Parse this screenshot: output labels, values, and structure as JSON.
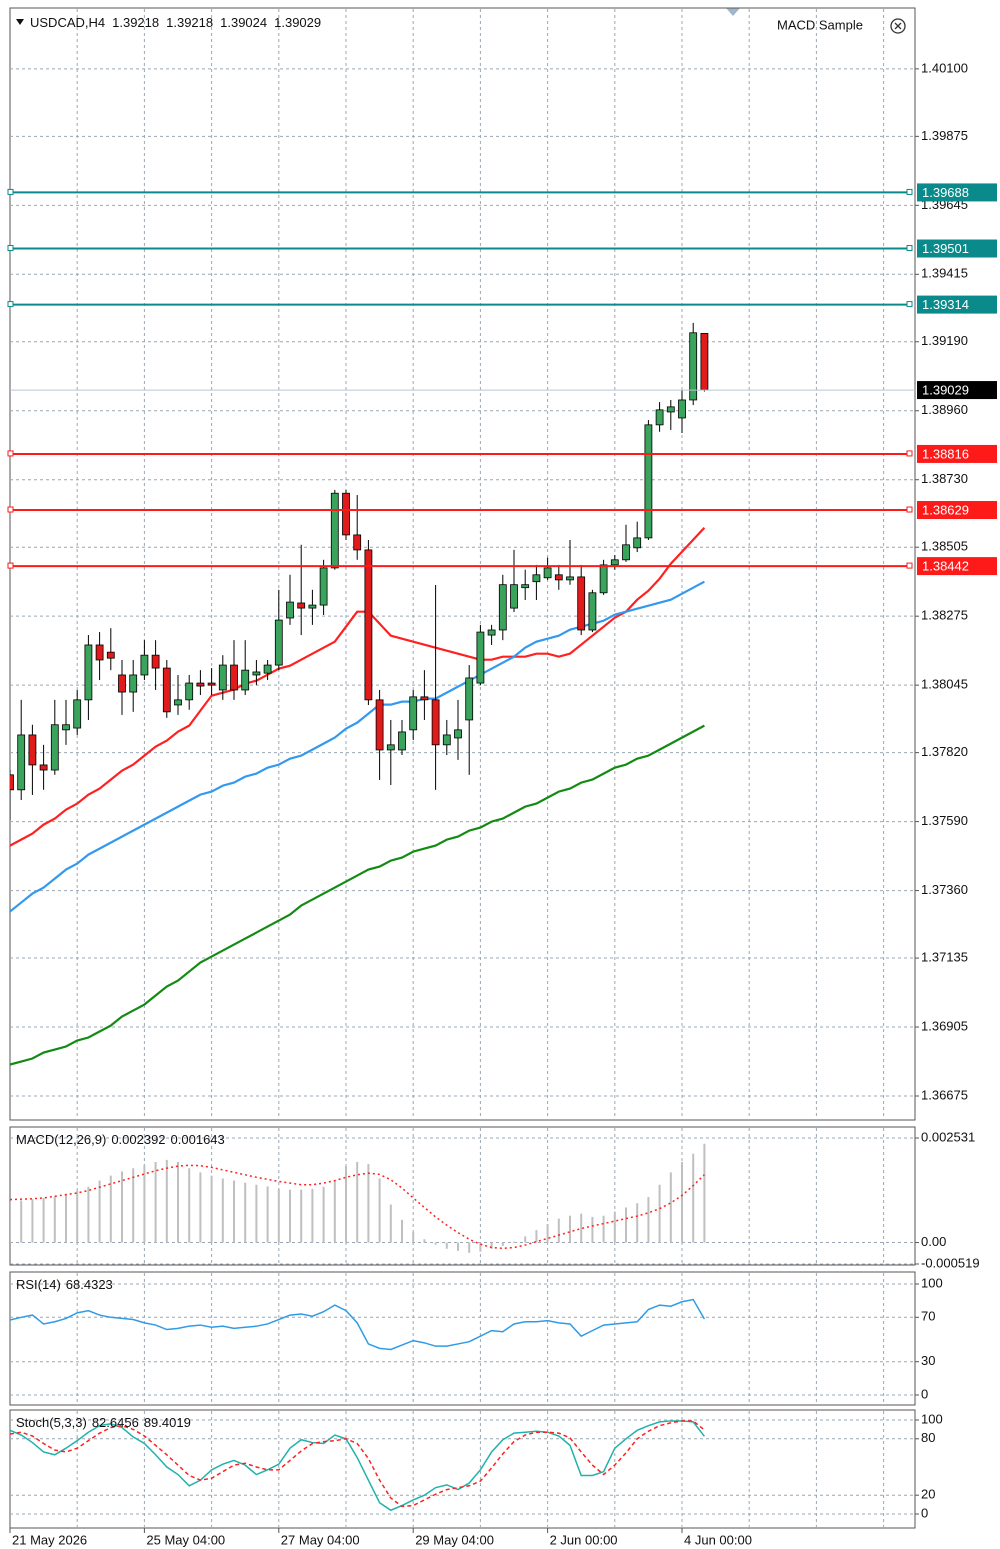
{
  "chart_data": [
    {
      "type": "candlestick",
      "symbol": "USDCAD,H4",
      "indicator": "MACD Sample",
      "categories": [
        "21 May 2026",
        null,
        null,
        null,
        null,
        null,
        null,
        null,
        null,
        null,
        null,
        null,
        "25 May 04:00",
        null,
        null,
        null,
        null,
        null,
        null,
        null,
        null,
        null,
        null,
        null,
        "27 May 04:00",
        null,
        null,
        null,
        null,
        null,
        null,
        null,
        null,
        null,
        null,
        null,
        "29 May 04:00",
        null,
        null,
        null,
        null,
        null,
        null,
        null,
        null,
        null,
        null,
        null,
        "2 Jun 00:00",
        null,
        null,
        null,
        null,
        null,
        null,
        null,
        null,
        null,
        null,
        null,
        "4 Jun 00:00",
        null,
        null
      ],
      "open": [
        1.37746,
        1.37696,
        1.37879,
        1.37779,
        1.37762,
        1.37896,
        1.37902,
        1.37996,
        1.38179,
        1.38155,
        1.38079,
        1.38022,
        1.38079,
        1.38145,
        1.38102,
        1.37979,
        1.37996,
        1.38052,
        1.38052,
        1.38029,
        1.38112,
        1.38029,
        1.38079,
        1.38085,
        1.38112,
        1.38269,
        1.38319,
        1.38302,
        1.38312,
        1.38436,
        1.38685,
        1.38546,
        1.38496,
        1.37996,
        1.37829,
        1.37829,
        1.37896,
        1.38006,
        1.37996,
        1.37846,
        1.37869,
        1.37929,
        1.38052,
        1.38212,
        1.38229,
        1.38302,
        1.3837,
        1.3839,
        1.38403,
        1.38413,
        1.38396,
        1.38406,
        1.38229,
        1.38353,
        1.38446,
        1.38463,
        1.38503,
        1.38536,
        1.38913,
        1.38956,
        1.38936,
        1.38996,
        1.39218
      ],
      "high": [
        1.37762,
        1.37996,
        1.37913,
        1.37846,
        1.37996,
        1.37996,
        1.38029,
        1.38212,
        1.38222,
        1.38235,
        1.38129,
        1.38129,
        1.38195,
        1.38195,
        1.38129,
        1.38079,
        1.38079,
        1.38095,
        1.38102,
        1.38145,
        1.38195,
        1.38195,
        1.38129,
        1.38129,
        1.38363,
        1.38413,
        1.38513,
        1.38363,
        1.38463,
        1.38696,
        1.38696,
        1.38679,
        1.38529,
        1.38029,
        1.37929,
        1.37929,
        1.38029,
        1.38095,
        1.38379,
        1.37929,
        1.37996,
        1.38112,
        1.38246,
        1.38246,
        1.38413,
        1.38496,
        1.3843,
        1.38446,
        1.3847,
        1.38446,
        1.38529,
        1.38446,
        1.38363,
        1.38463,
        1.38479,
        1.3858,
        1.3859,
        1.38929,
        1.38989,
        1.38996,
        1.39029,
        1.39253,
        1.39218
      ],
      "low": [
        1.37595,
        1.37662,
        1.37679,
        1.37696,
        1.37746,
        1.37846,
        1.37879,
        1.37929,
        1.38062,
        1.38095,
        1.37946,
        1.37956,
        1.38062,
        1.38029,
        1.37936,
        1.37946,
        1.37963,
        1.38012,
        1.38012,
        1.37996,
        1.37996,
        1.38012,
        1.38045,
        1.38062,
        1.38095,
        1.38246,
        1.38212,
        1.38246,
        1.38279,
        1.3843,
        1.38529,
        1.38463,
        1.37979,
        1.37729,
        1.37712,
        1.37812,
        1.37862,
        1.37929,
        1.37696,
        1.37812,
        1.37796,
        1.37746,
        1.38045,
        1.38179,
        1.38195,
        1.38289,
        1.38329,
        1.38329,
        1.38396,
        1.38363,
        1.3838,
        1.38212,
        1.38222,
        1.38346,
        1.3843,
        1.38456,
        1.38489,
        1.38529,
        1.3889,
        1.38896,
        1.38886,
        1.38979,
        1.39024
      ],
      "close": [
        1.37696,
        1.37879,
        1.37779,
        1.37762,
        1.37913,
        1.37913,
        1.37996,
        1.38179,
        1.38129,
        1.38135,
        1.38022,
        1.38079,
        1.38145,
        1.38102,
        1.37956,
        1.37996,
        1.38052,
        1.38042,
        1.38045,
        1.38112,
        1.38029,
        1.38095,
        1.38089,
        1.38112,
        1.38262,
        1.38322,
        1.38302,
        1.38312,
        1.38436,
        1.38685,
        1.38546,
        1.38496,
        1.37996,
        1.37829,
        1.37846,
        1.37889,
        1.38006,
        1.37996,
        1.37846,
        1.37879,
        1.37896,
        1.38069,
        1.38222,
        1.38229,
        1.3838,
        1.3838,
        1.3838,
        1.38413,
        1.38436,
        1.38396,
        1.38406,
        1.38229,
        1.38353,
        1.38446,
        1.38463,
        1.38513,
        1.38536,
        1.38913,
        1.38963,
        1.38973,
        1.38996,
        1.3922,
        1.39029
      ],
      "up_color": "#3aa35c",
      "down_color": "#e01b1b",
      "wick_color": "#000000",
      "overlays": [
        {
          "color": "#ff2020",
          "values": [
            1.3751,
            1.3753,
            1.3755,
            1.3758,
            1.376,
            1.3763,
            1.3765,
            1.3768,
            1.377,
            1.3773,
            1.3776,
            1.3778,
            1.3781,
            1.3784,
            1.3786,
            1.3789,
            1.3791,
            1.3796,
            1.3801,
            1.3802,
            1.3803,
            1.3805,
            1.3806,
            1.3808,
            1.381,
            1.3811,
            1.3813,
            1.3815,
            1.3817,
            1.3819,
            1.3824,
            1.3829,
            1.3829,
            1.3825,
            1.3821,
            1.382,
            1.3819,
            1.3818,
            1.3817,
            1.3816,
            1.3815,
            1.3814,
            1.3813,
            1.3813,
            1.3814,
            1.3814,
            1.3814,
            1.3815,
            1.3815,
            1.3814,
            1.3815,
            1.3818,
            1.3821,
            1.3824,
            1.3827,
            1.3829,
            1.3833,
            1.3836,
            1.384,
            1.3845,
            1.3849,
            1.3853,
            1.3857
          ]
        },
        {
          "color": "#3399ee",
          "values": [
            1.3729,
            1.3732,
            1.3735,
            1.3737,
            1.374,
            1.3743,
            1.3745,
            1.3748,
            1.375,
            1.3752,
            1.3754,
            1.3756,
            1.3758,
            1.376,
            1.3762,
            1.3764,
            1.3766,
            1.3768,
            1.3769,
            1.3771,
            1.3772,
            1.3774,
            1.3775,
            1.3777,
            1.3778,
            1.378,
            1.3781,
            1.3783,
            1.3785,
            1.3787,
            1.379,
            1.3792,
            1.3795,
            1.3798,
            1.3798,
            1.3799,
            1.3799,
            1.38,
            1.38,
            1.3802,
            1.3804,
            1.3806,
            1.3808,
            1.381,
            1.3812,
            1.3814,
            1.3817,
            1.3819,
            1.382,
            1.3821,
            1.3823,
            1.3824,
            1.3825,
            1.3826,
            1.3828,
            1.3829,
            1.383,
            1.3831,
            1.3832,
            1.3833,
            1.3835,
            1.3837,
            1.3839
          ]
        },
        {
          "color": "#138a13",
          "values": [
            1.3678,
            1.3679,
            1.368,
            1.3682,
            1.3683,
            1.3684,
            1.3686,
            1.3687,
            1.3689,
            1.3691,
            1.3694,
            1.3696,
            1.3698,
            1.3701,
            1.3704,
            1.3706,
            1.3709,
            1.3712,
            1.3714,
            1.3716,
            1.3718,
            1.372,
            1.3722,
            1.3724,
            1.3726,
            1.3728,
            1.3731,
            1.3733,
            1.3735,
            1.3737,
            1.3739,
            1.3741,
            1.3743,
            1.3744,
            1.3746,
            1.3747,
            1.3749,
            1.375,
            1.3751,
            1.3753,
            1.3754,
            1.3756,
            1.3757,
            1.3759,
            1.376,
            1.3762,
            1.3764,
            1.3765,
            1.3767,
            1.3769,
            1.377,
            1.3772,
            1.3773,
            1.3775,
            1.3777,
            1.3778,
            1.378,
            1.3781,
            1.3783,
            1.3785,
            1.3787,
            1.3789,
            1.3791
          ]
        }
      ],
      "levels": [
        {
          "value": 1.39688,
          "color": "#0a8a8a"
        },
        {
          "value": 1.39501,
          "color": "#0a8a8a"
        },
        {
          "value": 1.39314,
          "color": "#0a8a8a"
        },
        {
          "value": 1.38816,
          "color": "#ff1a1a"
        },
        {
          "value": 1.38629,
          "color": "#ff1a1a"
        },
        {
          "value": 1.38442,
          "color": "#ff1a1a"
        }
      ],
      "last_price": 1.39029,
      "ylim": [
        1.36595,
        1.40303
      ],
      "yticks": [
        {
          "value": 1.401,
          "label": "1.40100"
        },
        1.39875,
        1.39645,
        1.39415,
        {
          "value": 1.3919,
          "label": "1.39190"
        },
        {
          "value": 1.3896,
          "label": "1.38960"
        },
        {
          "value": 1.3873,
          "label": "1.38730"
        },
        1.38505,
        1.38275,
        1.38045,
        {
          "value": 1.3782,
          "label": "1.37820"
        },
        {
          "value": 1.3759,
          "label": "1.37590"
        },
        {
          "value": 1.3736,
          "label": "1.37360"
        },
        1.37135,
        1.36905,
        1.36675
      ],
      "grid": true
    },
    {
      "type": "macd",
      "title": "MACD(12,26,9)",
      "series": [
        {
          "color": "#bfbfbf",
          "style": "histogram",
          "values": [
            0.001,
            0.00102,
            0.00105,
            0.00108,
            0.00112,
            0.00118,
            0.00125,
            0.00135,
            0.0015,
            0.00162,
            0.00172,
            0.0018,
            0.00188,
            0.00195,
            0.002,
            0.00195,
            0.0018,
            0.0017,
            0.00162,
            0.00155,
            0.0015,
            0.00145,
            0.0014,
            0.00136,
            0.0013,
            0.00128,
            0.00128,
            0.0013,
            0.00135,
            0.0015,
            0.00185,
            0.00195,
            0.0019,
            0.00155,
            0.00092,
            0.00055,
            0.00025,
            8e-05,
            -5e-05,
            -0.00015,
            -0.0002,
            -0.00025,
            -0.00022,
            -0.00015,
            -8e-05,
            2e-05,
            0.00015,
            0.0003,
            0.00045,
            0.00058,
            0.00065,
            0.0007,
            0.00062,
            0.00065,
            0.00075,
            0.00085,
            0.00095,
            0.0011,
            0.0014,
            0.0017,
            0.00195,
            0.00215,
            0.002392
          ]
        },
        {
          "color": "#ff2020",
          "style": "dotted",
          "values": [
            0.00104,
            0.00105,
            0.00106,
            0.00108,
            0.00112,
            0.00116,
            0.0012,
            0.00126,
            0.00134,
            0.00142,
            0.0015,
            0.00158,
            0.00166,
            0.00174,
            0.0018,
            0.00185,
            0.00187,
            0.00186,
            0.00182,
            0.00176,
            0.0017,
            0.00164,
            0.00158,
            0.00153,
            0.00148,
            0.00144,
            0.0014,
            0.0014,
            0.00144,
            0.0015,
            0.00158,
            0.00164,
            0.00168,
            0.00165,
            0.00152,
            0.00132,
            0.00108,
            0.00085,
            0.00062,
            0.00042,
            0.00024,
            8e-05,
            -4e-05,
            -0.00012,
            -0.00014,
            -0.00012,
            -6e-05,
            2e-05,
            0.0001,
            0.00018,
            0.00026,
            0.00034,
            0.0004,
            0.00046,
            0.00052,
            0.00058,
            0.00064,
            0.00072,
            0.00082,
            0.00096,
            0.00114,
            0.00138,
            0.001643
          ]
        }
      ],
      "ylim": [
        -0.000519,
        0.002531
      ],
      "yticks": [
        0.002531,
        {
          "value": 0,
          "label": "0.00"
        },
        -0.000519
      ]
    },
    {
      "type": "line",
      "title": "RSI(14)",
      "series": [
        {
          "color": "#2f9be6",
          "style": "solid",
          "values": [
            67.6,
            70,
            72,
            64,
            66,
            69,
            74,
            76,
            72,
            70,
            69,
            68,
            65,
            63,
            59,
            60,
            62,
            63,
            61,
            62,
            60,
            61,
            62,
            64,
            68,
            72,
            73,
            71,
            75,
            81,
            76,
            65,
            46,
            42,
            41,
            45,
            49,
            47,
            44,
            44,
            46,
            48,
            53,
            58,
            57,
            64,
            66,
            66,
            67,
            65,
            64,
            53,
            58,
            63,
            64,
            65,
            66,
            77,
            81,
            80,
            84,
            86,
            68.4323
          ]
        }
      ],
      "ylim": [
        0,
        100
      ],
      "yticks": [
        100,
        70,
        30,
        0
      ]
    },
    {
      "type": "line",
      "title": "Stoch(5,3,3)",
      "series": [
        {
          "color": "#20b2aa",
          "style": "solid",
          "values": [
            89,
            84,
            76,
            66,
            63,
            70,
            78,
            87,
            94,
            96,
            92,
            82,
            75,
            63,
            50,
            42,
            30,
            36,
            47,
            53,
            57,
            52,
            42,
            47,
            53,
            70,
            79,
            76,
            75,
            84,
            80,
            60,
            36,
            12,
            4,
            9,
            15,
            20,
            28,
            31,
            26,
            33,
            47,
            66,
            79,
            86,
            87,
            88,
            87,
            83,
            73,
            41,
            41,
            45,
            70,
            80,
            89,
            94,
            98,
            99,
            99,
            98,
            82.6456
          ]
        },
        {
          "color": "#ff2020",
          "style": "dashed",
          "values": [
            85,
            87,
            83,
            75,
            68,
            66,
            70,
            78,
            86,
            92,
            94,
            90,
            83,
            73,
            63,
            52,
            41,
            36,
            38,
            45,
            52,
            54,
            50,
            47,
            47,
            57,
            67,
            75,
            77,
            78,
            80,
            75,
            59,
            36,
            17,
            8,
            9,
            15,
            21,
            26,
            28,
            30,
            35,
            49,
            64,
            77,
            84,
            87,
            87,
            86,
            81,
            66,
            52,
            42,
            52,
            65,
            80,
            88,
            94,
            97,
            99,
            99,
            89.4019
          ]
        }
      ],
      "ylim": [
        0,
        100
      ],
      "yticks": [
        100,
        80,
        20,
        0
      ]
    }
  ]
}
